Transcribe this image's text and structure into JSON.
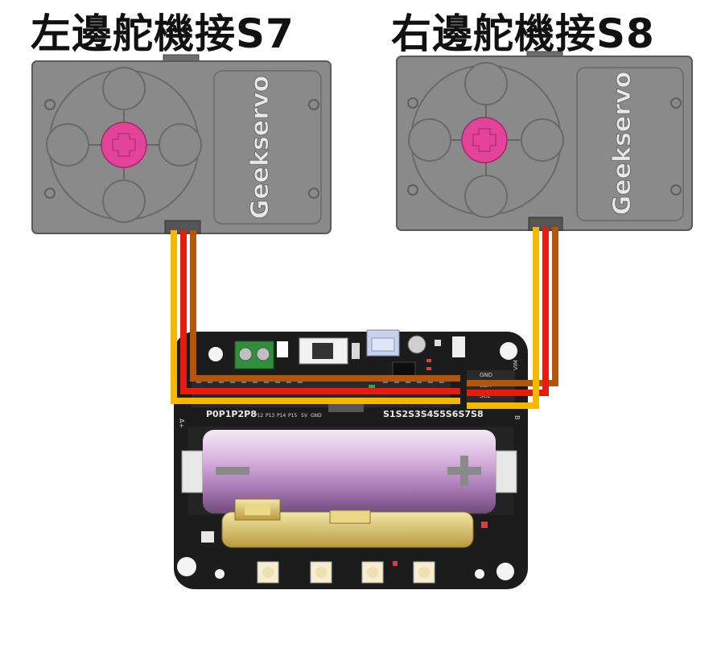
{
  "titles": {
    "left": "左邊舵機接S7",
    "right": "右邊舵機接S8"
  },
  "servos": [
    {
      "brand": "Geekservo"
    },
    {
      "brand": "Geekservo"
    }
  ],
  "board": {
    "left_pins": "P0P1P2P8",
    "small_pins": [
      "P12",
      "P13",
      "P14",
      "P15",
      "5V",
      "GND"
    ],
    "servo_pins": "S1S2S3S4S5S6S7S8",
    "right_labels": [
      "GND",
      "SDA",
      "SCL",
      "VIM"
    ],
    "side_a": "A+",
    "side_b": "B"
  },
  "colors": {
    "signal_wire": "#f5b800",
    "power_wire": "#e81b0f",
    "ground_wire": "#b3570f",
    "servo_body": "#8a8a8a",
    "servo_hub": "#e4439a",
    "board": "#1c1c1c"
  }
}
